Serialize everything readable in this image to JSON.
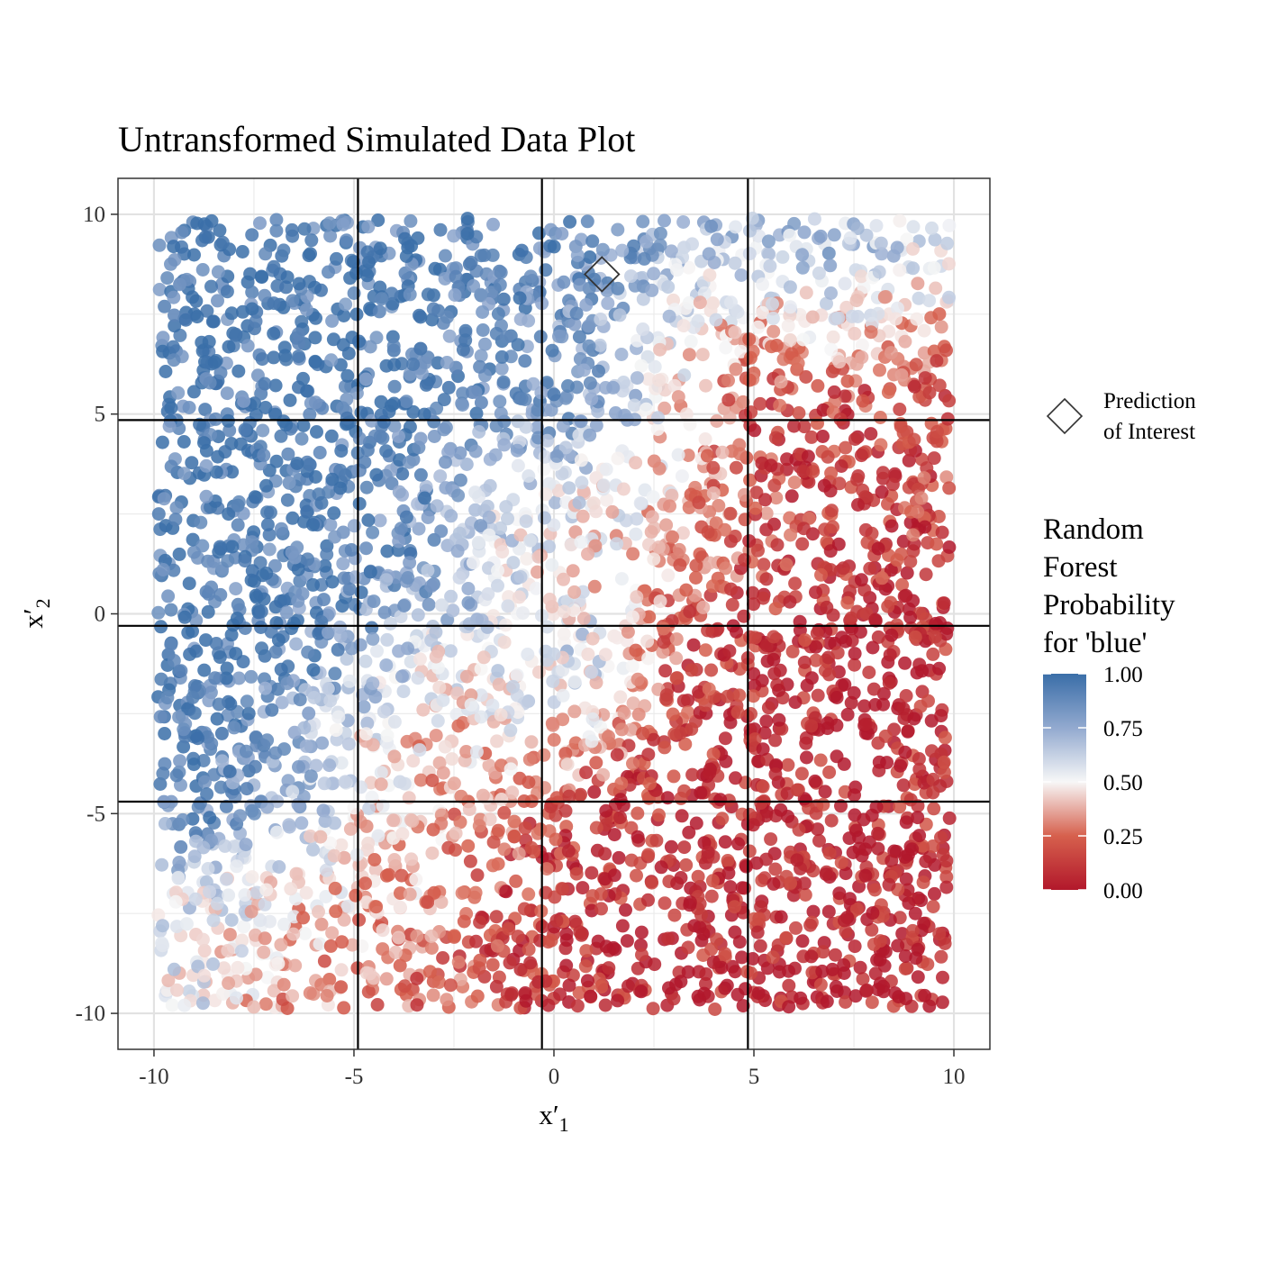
{
  "chart_data": {
    "type": "scatter",
    "title": "Untransformed Simulated Data Plot",
    "xlabel": "x′1",
    "ylabel": "x′2",
    "xlim": [
      -10.9,
      10.9
    ],
    "ylim": [
      -10.9,
      10.9
    ],
    "x_ticks": [
      -10,
      -5,
      0,
      5,
      10
    ],
    "y_ticks": [
      -10,
      -5,
      0,
      5,
      10
    ],
    "grid": true,
    "n_points_approx": 4000,
    "point_domain": {
      "x": [
        -9.9,
        9.9
      ],
      "y": [
        -9.9,
        9.9
      ]
    },
    "color_variable": "Random Forest Probability for 'blue'",
    "color_scale": {
      "stops": [
        {
          "value": 0.0,
          "color": "#B2182B"
        },
        {
          "value": 0.25,
          "color": "#D6604D"
        },
        {
          "value": 0.5,
          "color": "#F7F7F7"
        },
        {
          "value": 0.75,
          "color": "#92A9CF"
        },
        {
          "value": 1.0,
          "color": "#3A6EA8"
        }
      ]
    },
    "probability_grid": {
      "description": "approximate random-forest probability of 'blue' per 2x2 region (rows top to bottom, columns left to right)",
      "x_edges": [
        -10,
        -8,
        -6,
        -4,
        -2,
        0,
        2,
        4,
        6,
        8,
        10
      ],
      "y_edges_top_down": [
        10,
        8,
        6,
        4,
        2,
        0,
        -2,
        -4,
        -6,
        -8,
        -10
      ],
      "values": [
        [
          0.98,
          0.97,
          0.96,
          0.95,
          0.92,
          0.85,
          0.7,
          0.65,
          0.7,
          0.6
        ],
        [
          0.97,
          0.96,
          0.95,
          0.94,
          0.9,
          0.8,
          0.5,
          0.35,
          0.4,
          0.35
        ],
        [
          0.97,
          0.96,
          0.95,
          0.92,
          0.85,
          0.8,
          0.45,
          0.12,
          0.1,
          0.12
        ],
        [
          0.96,
          0.96,
          0.93,
          0.85,
          0.55,
          0.55,
          0.4,
          0.2,
          0.1,
          0.15
        ],
        [
          0.96,
          0.95,
          0.9,
          0.8,
          0.55,
          0.45,
          0.3,
          0.15,
          0.08,
          0.12
        ],
        [
          0.95,
          0.92,
          0.8,
          0.55,
          0.6,
          0.6,
          0.2,
          0.05,
          0.04,
          0.05
        ],
        [
          0.92,
          0.85,
          0.55,
          0.4,
          0.45,
          0.4,
          0.1,
          0.05,
          0.04,
          0.05
        ],
        [
          0.88,
          0.75,
          0.5,
          0.35,
          0.25,
          0.08,
          0.05,
          0.04,
          0.04,
          0.05
        ],
        [
          0.6,
          0.45,
          0.4,
          0.35,
          0.12,
          0.06,
          0.05,
          0.04,
          0.04,
          0.05
        ],
        [
          0.55,
          0.35,
          0.3,
          0.25,
          0.12,
          0.06,
          0.05,
          0.04,
          0.04,
          0.05
        ]
      ]
    },
    "vertical_lines": [
      -4.9,
      -0.3,
      4.85
    ],
    "horizontal_lines": [
      4.85,
      -0.3,
      -4.7
    ],
    "highlight_point": {
      "x": 1.2,
      "y": 8.5,
      "label": "Prediction of Interest"
    },
    "legend": {
      "shape_entry": "Prediction of Interest",
      "shape_entry_lines": [
        "Prediction",
        "of Interest"
      ],
      "colorbar_title_lines": [
        "Random",
        "Forest",
        "Probability",
        "for 'blue'"
      ],
      "colorbar_labels": [
        "1.00",
        "0.75",
        "0.50",
        "0.25",
        "0.00"
      ],
      "position": "right"
    }
  }
}
